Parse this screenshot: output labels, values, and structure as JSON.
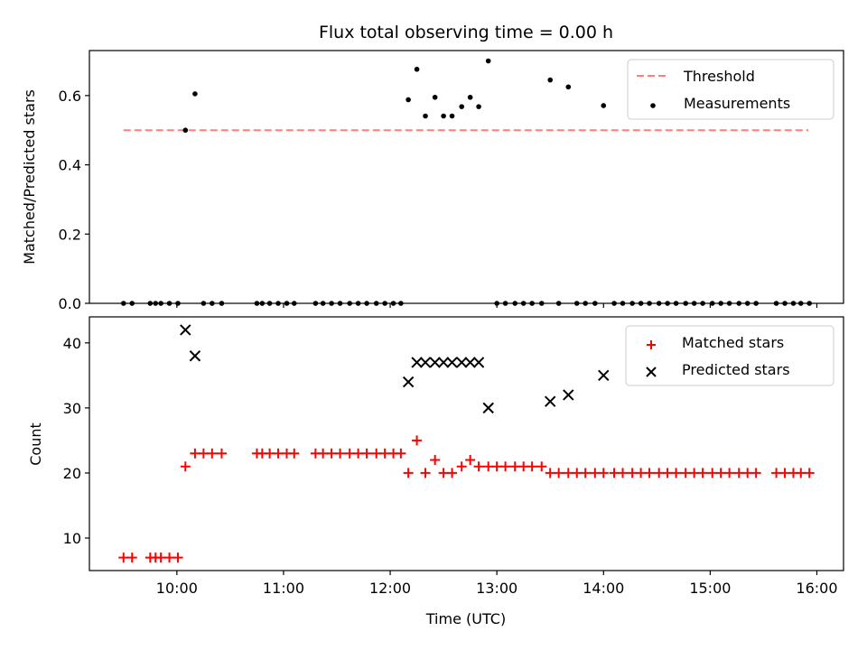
{
  "figure": {
    "title": "Flux total observing time = 0.00 h",
    "xlabel": "Time (UTC)"
  },
  "colors": {
    "threshold": "#ff7f7f",
    "measurements": "#000000",
    "matched": "#ff0000",
    "predicted": "#000000"
  },
  "chart_data": [
    {
      "type": "scatter",
      "ylabel": "Matched/Predicted stars",
      "ylim": [
        0,
        0.73
      ],
      "xlim_hours": [
        9.18,
        16.25
      ],
      "yticks": [
        0.0,
        0.2,
        0.4,
        0.6
      ],
      "ytick_labels": [
        "0.0",
        "0.2",
        "0.4",
        "0.6"
      ],
      "xtick_labels": [
        "10:00",
        "11:00",
        "12:00",
        "13:00",
        "14:00",
        "15:00",
        "16:00"
      ],
      "show_xtick_labels": false,
      "legend": {
        "position": "top-right",
        "entries": [
          "Threshold",
          "Measurements"
        ]
      },
      "series": [
        {
          "name": "Threshold",
          "type": "line",
          "style": "dashed",
          "x": [
            9.5,
            15.92
          ],
          "y": [
            0.5,
            0.5
          ]
        },
        {
          "name": "Measurements",
          "type": "scatter",
          "marker": "dot",
          "points": [
            [
              9.5,
              0.0
            ],
            [
              9.58,
              0.0
            ],
            [
              9.75,
              0.0
            ],
            [
              9.8,
              0.0
            ],
            [
              9.85,
              0.0
            ],
            [
              9.93,
              0.0
            ],
            [
              10.01,
              0.0
            ],
            [
              10.08,
              0.5
            ],
            [
              10.17,
              0.605
            ],
            [
              10.25,
              0.0
            ],
            [
              10.33,
              0.0
            ],
            [
              10.42,
              0.0
            ],
            [
              10.75,
              0.0
            ],
            [
              10.8,
              0.0
            ],
            [
              10.87,
              0.0
            ],
            [
              10.95,
              0.0
            ],
            [
              11.03,
              0.0
            ],
            [
              11.1,
              0.0
            ],
            [
              11.3,
              0.0
            ],
            [
              11.37,
              0.0
            ],
            [
              11.45,
              0.0
            ],
            [
              11.53,
              0.0
            ],
            [
              11.62,
              0.0
            ],
            [
              11.7,
              0.0
            ],
            [
              11.78,
              0.0
            ],
            [
              11.87,
              0.0
            ],
            [
              11.95,
              0.0
            ],
            [
              12.03,
              0.0
            ],
            [
              12.1,
              0.0
            ],
            [
              12.17,
              0.588
            ],
            [
              12.25,
              0.676
            ],
            [
              12.33,
              0.541
            ],
            [
              12.42,
              0.595
            ],
            [
              12.5,
              0.541
            ],
            [
              12.58,
              0.541
            ],
            [
              12.67,
              0.568
            ],
            [
              12.75,
              0.595
            ],
            [
              12.83,
              0.568
            ],
            [
              12.92,
              0.7
            ],
            [
              13.0,
              0.0
            ],
            [
              13.08,
              0.0
            ],
            [
              13.17,
              0.0
            ],
            [
              13.25,
              0.0
            ],
            [
              13.33,
              0.0
            ],
            [
              13.42,
              0.0
            ],
            [
              13.5,
              0.645
            ],
            [
              13.58,
              0.0
            ],
            [
              13.67,
              0.625
            ],
            [
              13.75,
              0.0
            ],
            [
              13.83,
              0.0
            ],
            [
              13.92,
              0.0
            ],
            [
              14.0,
              0.571
            ],
            [
              14.1,
              0.0
            ],
            [
              14.18,
              0.0
            ],
            [
              14.27,
              0.0
            ],
            [
              14.35,
              0.0
            ],
            [
              14.43,
              0.0
            ],
            [
              14.52,
              0.0
            ],
            [
              14.6,
              0.0
            ],
            [
              14.68,
              0.0
            ],
            [
              14.77,
              0.0
            ],
            [
              14.85,
              0.0
            ],
            [
              14.93,
              0.0
            ],
            [
              15.02,
              0.0
            ],
            [
              15.1,
              0.0
            ],
            [
              15.18,
              0.0
            ],
            [
              15.27,
              0.0
            ],
            [
              15.35,
              0.0
            ],
            [
              15.43,
              0.0
            ],
            [
              15.62,
              0.0
            ],
            [
              15.7,
              0.0
            ],
            [
              15.78,
              0.0
            ],
            [
              15.85,
              0.0
            ],
            [
              15.93,
              0.0
            ]
          ]
        }
      ]
    },
    {
      "type": "scatter",
      "ylabel": "Count",
      "ylim": [
        5,
        44
      ],
      "xlim_hours": [
        9.18,
        16.25
      ],
      "yticks": [
        10,
        20,
        30,
        40
      ],
      "ytick_labels": [
        "10",
        "20",
        "30",
        "40"
      ],
      "xticks_hours": [
        10,
        11,
        12,
        13,
        14,
        15,
        16
      ],
      "xtick_labels": [
        "10:00",
        "11:00",
        "12:00",
        "13:00",
        "14:00",
        "15:00",
        "16:00"
      ],
      "legend": {
        "position": "top-right",
        "entries": [
          "Matched stars",
          "Predicted stars"
        ]
      },
      "series": [
        {
          "name": "Matched stars",
          "type": "scatter",
          "marker": "plus",
          "points": [
            [
              9.5,
              7
            ],
            [
              9.58,
              7
            ],
            [
              9.75,
              7
            ],
            [
              9.8,
              7
            ],
            [
              9.85,
              7
            ],
            [
              9.93,
              7
            ],
            [
              10.01,
              7
            ],
            [
              10.08,
              21
            ],
            [
              10.17,
              23
            ],
            [
              10.25,
              23
            ],
            [
              10.33,
              23
            ],
            [
              10.42,
              23
            ],
            [
              10.75,
              23
            ],
            [
              10.8,
              23
            ],
            [
              10.87,
              23
            ],
            [
              10.95,
              23
            ],
            [
              11.03,
              23
            ],
            [
              11.1,
              23
            ],
            [
              11.3,
              23
            ],
            [
              11.37,
              23
            ],
            [
              11.45,
              23
            ],
            [
              11.53,
              23
            ],
            [
              11.62,
              23
            ],
            [
              11.7,
              23
            ],
            [
              11.78,
              23
            ],
            [
              11.87,
              23
            ],
            [
              11.95,
              23
            ],
            [
              12.03,
              23
            ],
            [
              12.1,
              23
            ],
            [
              12.17,
              20
            ],
            [
              12.25,
              25
            ],
            [
              12.33,
              20
            ],
            [
              12.42,
              22
            ],
            [
              12.5,
              20
            ],
            [
              12.58,
              20
            ],
            [
              12.67,
              21
            ],
            [
              12.75,
              22
            ],
            [
              12.83,
              21
            ],
            [
              12.92,
              21
            ],
            [
              13.0,
              21
            ],
            [
              13.08,
              21
            ],
            [
              13.17,
              21
            ],
            [
              13.25,
              21
            ],
            [
              13.33,
              21
            ],
            [
              13.42,
              21
            ],
            [
              13.5,
              20
            ],
            [
              13.58,
              20
            ],
            [
              13.67,
              20
            ],
            [
              13.75,
              20
            ],
            [
              13.83,
              20
            ],
            [
              13.92,
              20
            ],
            [
              14.0,
              20
            ],
            [
              14.1,
              20
            ],
            [
              14.18,
              20
            ],
            [
              14.27,
              20
            ],
            [
              14.35,
              20
            ],
            [
              14.43,
              20
            ],
            [
              14.52,
              20
            ],
            [
              14.6,
              20
            ],
            [
              14.68,
              20
            ],
            [
              14.77,
              20
            ],
            [
              14.85,
              20
            ],
            [
              14.93,
              20
            ],
            [
              15.02,
              20
            ],
            [
              15.1,
              20
            ],
            [
              15.18,
              20
            ],
            [
              15.27,
              20
            ],
            [
              15.35,
              20
            ],
            [
              15.43,
              20
            ],
            [
              15.62,
              20
            ],
            [
              15.7,
              20
            ],
            [
              15.78,
              20
            ],
            [
              15.85,
              20
            ],
            [
              15.93,
              20
            ]
          ]
        },
        {
          "name": "Predicted stars",
          "type": "scatter",
          "marker": "x",
          "points": [
            [
              10.08,
              42
            ],
            [
              10.17,
              38
            ],
            [
              12.17,
              34
            ],
            [
              12.25,
              37
            ],
            [
              12.33,
              37
            ],
            [
              12.42,
              37
            ],
            [
              12.5,
              37
            ],
            [
              12.58,
              37
            ],
            [
              12.67,
              37
            ],
            [
              12.75,
              37
            ],
            [
              12.83,
              37
            ],
            [
              12.92,
              30
            ],
            [
              13.5,
              31
            ],
            [
              13.67,
              32
            ],
            [
              14.0,
              35
            ]
          ]
        }
      ]
    }
  ]
}
